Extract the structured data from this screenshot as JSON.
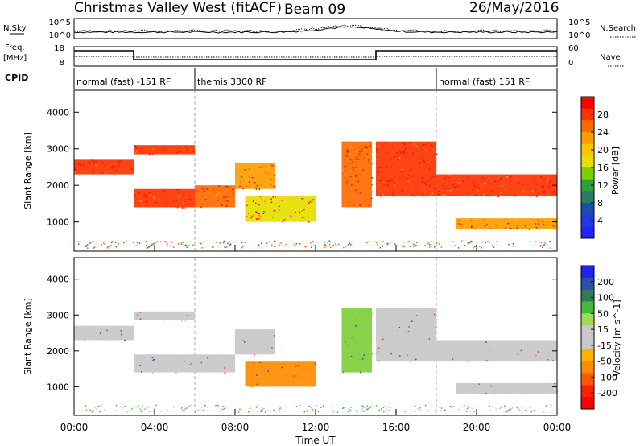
{
  "header": {
    "station": "Christmas Valley West (fitACF)",
    "beam": "Beam 09",
    "date": "26/May/2016"
  },
  "top_panels": {
    "nsky_label": "N.Sky",
    "nsky_ticks": [
      "10^5",
      "10^0"
    ],
    "nsearch_label": "N.Search",
    "nsearch_ticks": [
      "10^5",
      "10^0"
    ],
    "freq_label": "Freq.",
    "freq_unit": "[MHz]",
    "freq_ticks": [
      "18",
      "8"
    ],
    "nave_label": "Nave",
    "nave_ticks": [
      "60",
      "0"
    ],
    "cpid_label": "CPID",
    "cpid_segments": [
      {
        "label": "normal (fast) -151 RF",
        "start_h": 0,
        "end_h": 6
      },
      {
        "label": "themis 3300 RF",
        "start_h": 6,
        "end_h": 18
      },
      {
        "label": "normal (fast) 151 RF",
        "start_h": 18,
        "end_h": 24
      }
    ]
  },
  "chart_data": [
    {
      "type": "heatmap",
      "panel": "power",
      "ylabel": "Slant Range [km]",
      "yticks": [
        "4000",
        "3000",
        "2000",
        "1000"
      ],
      "ylim": [
        200,
        4600
      ],
      "xlim": [
        0,
        24
      ],
      "colorbar_label": "Power [dB]",
      "colorbar_ticks": [
        "28",
        "24",
        "20",
        "16",
        "12",
        "8",
        "4"
      ],
      "colorbar_colors": [
        "#ff0000",
        "#ff3300",
        "#ff6a00",
        "#ff9d00",
        "#ffc400",
        "#e6e000",
        "#7ecf00",
        "#2e9e3a",
        "#2a7a66",
        "#1a4fae",
        "#1e3adf",
        "#2222ff"
      ],
      "echo_bands": [
        {
          "start_h": 0.0,
          "end_h": 3.0,
          "range_km": [
            2300,
            2700
          ],
          "power_db": 28
        },
        {
          "start_h": 3.0,
          "end_h": 6.0,
          "range_km": [
            2850,
            3100
          ],
          "power_db": 28
        },
        {
          "start_h": 3.0,
          "end_h": 6.0,
          "range_km": [
            1400,
            1900
          ],
          "power_db": 28
        },
        {
          "start_h": 6.0,
          "end_h": 8.0,
          "range_km": [
            1400,
            2000
          ],
          "power_db": 26
        },
        {
          "start_h": 8.0,
          "end_h": 10.0,
          "range_km": [
            1900,
            2600
          ],
          "power_db": 24
        },
        {
          "start_h": 8.5,
          "end_h": 12.0,
          "range_km": [
            1000,
            1700
          ],
          "power_db": 18
        },
        {
          "start_h": 13.3,
          "end_h": 14.8,
          "range_km": [
            1400,
            3200
          ],
          "power_db": 26
        },
        {
          "start_h": 15.0,
          "end_h": 18.0,
          "range_km": [
            1700,
            3200
          ],
          "power_db": 28
        },
        {
          "start_h": 18.0,
          "end_h": 24.0,
          "range_km": [
            1700,
            2300
          ],
          "power_db": 28
        },
        {
          "start_h": 19.0,
          "end_h": 24.0,
          "range_km": [
            800,
            1100
          ],
          "power_db": 22
        }
      ]
    },
    {
      "type": "heatmap",
      "panel": "velocity",
      "ylabel": "Slant Range [km]",
      "yticks": [
        "4000",
        "3000",
        "2000",
        "1000"
      ],
      "ylim": [
        200,
        4600
      ],
      "xlim": [
        0,
        24
      ],
      "xlabel": "Time UT",
      "xticks": [
        "00:00",
        "04:00",
        "08:00",
        "12:00",
        "16:00",
        "20:00",
        "00:00"
      ],
      "colorbar_label": "Velocity [m s^-1]",
      "colorbar_ticks": [
        "200",
        "100",
        "50",
        "15",
        "-15",
        "-50",
        "-100",
        "-200"
      ],
      "colorbar_colors": [
        "#2222ee",
        "#2a4fa8",
        "#2e7c50",
        "#45b93a",
        "#a0d95a",
        "#c8c8c8",
        "#c8c8c8",
        "#ffb400",
        "#ff8c00",
        "#ff5a00",
        "#ff2000",
        "#ff0000"
      ],
      "echo_bands": [
        {
          "start_h": 0.0,
          "end_h": 3.0,
          "range_km": [
            2300,
            2700
          ],
          "velocity": 0
        },
        {
          "start_h": 3.0,
          "end_h": 6.0,
          "range_km": [
            2850,
            3100
          ],
          "velocity": 0
        },
        {
          "start_h": 3.0,
          "end_h": 8.0,
          "range_km": [
            1400,
            1900
          ],
          "velocity": 0
        },
        {
          "start_h": 8.0,
          "end_h": 10.0,
          "range_km": [
            1900,
            2600
          ],
          "velocity": 0
        },
        {
          "start_h": 8.5,
          "end_h": 12.0,
          "range_km": [
            1000,
            1700
          ],
          "velocity": -60
        },
        {
          "start_h": 13.3,
          "end_h": 14.8,
          "range_km": [
            1400,
            3200
          ],
          "velocity": 30
        },
        {
          "start_h": 15.0,
          "end_h": 18.0,
          "range_km": [
            1700,
            3200
          ],
          "velocity": 0
        },
        {
          "start_h": 18.0,
          "end_h": 24.0,
          "range_km": [
            1700,
            2300
          ],
          "velocity": 0
        },
        {
          "start_h": 19.0,
          "end_h": 24.0,
          "range_km": [
            800,
            1100
          ],
          "velocity": 0
        }
      ]
    }
  ]
}
